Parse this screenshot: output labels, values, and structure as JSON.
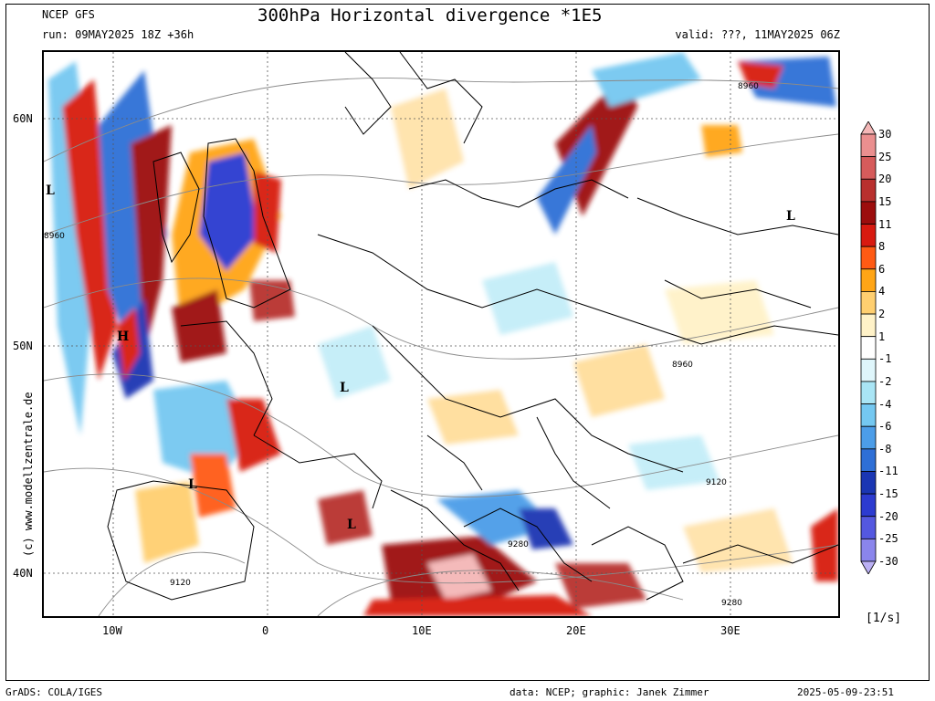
{
  "header": {
    "model": "NCEP GFS",
    "run": "run: 09MAY2025 18Z +36h",
    "title": "300hPa Horizontal divergence *1E5",
    "valid": "valid: ???, 11MAY2025 06Z"
  },
  "axes": {
    "y_labels": [
      "60N",
      "50N",
      "40N"
    ],
    "x_labels": [
      "10W",
      "0",
      "10E",
      "20E",
      "30E"
    ]
  },
  "map_labels": {
    "pressure_centers": [
      "L",
      "L",
      "H",
      "L",
      "L",
      "L"
    ],
    "contour_values": [
      "8960",
      "8960",
      "8960",
      "9120",
      "9120",
      "9280",
      "9280"
    ]
  },
  "colorbar": {
    "levels": [
      "30",
      "25",
      "20",
      "15",
      "11",
      "8",
      "6",
      "4",
      "2",
      "1",
      "-1",
      "-2",
      "-4",
      "-6",
      "-8",
      "-11",
      "-15",
      "-20",
      "-25",
      "-30"
    ],
    "colors": [
      "#f4b7b7",
      "#ea8f8f",
      "#d65b5b",
      "#b8302e",
      "#9c0d0d",
      "#d81a10",
      "#ff5a14",
      "#ffa516",
      "#ffcf70",
      "#fff2c8",
      "#ffffff",
      "#dff6fb",
      "#a9e5f5",
      "#74c8f1",
      "#4c9de8",
      "#2e6fd6",
      "#1a36b3",
      "#2c3bd0",
      "#5458e0",
      "#8a85ec",
      "#bbb0f4"
    ],
    "unit": "[1/s]"
  },
  "footer": {
    "left": "GrADS: COLA/IGES",
    "center": "data: NCEP; graphic: Janek Zimmer",
    "right": "2025-05-09-23:51"
  },
  "copyright": "(c) www.modellzentrale.de"
}
